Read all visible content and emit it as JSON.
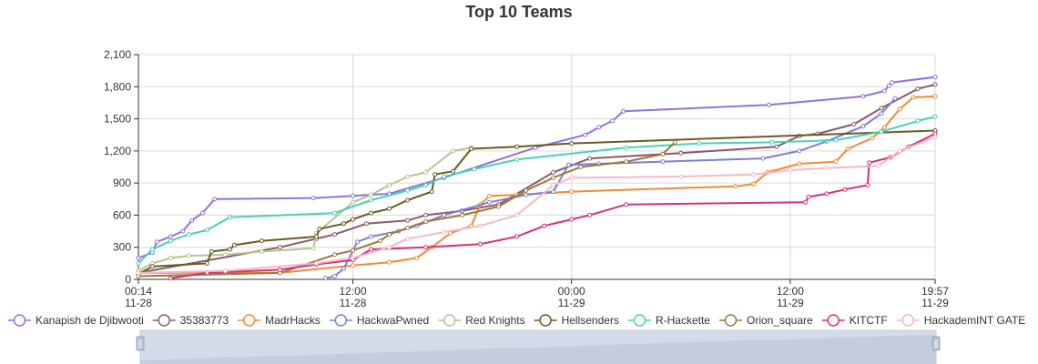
{
  "chart_data": {
    "type": "line",
    "title": "Top 10 Teams",
    "ylim": [
      0,
      2100
    ],
    "yticks": [
      0,
      300,
      600,
      900,
      1200,
      1500,
      1800,
      2100
    ],
    "ytick_labels": [
      "0",
      "300",
      "600",
      "900",
      "1,200",
      "1,500",
      "1,800",
      "2,100"
    ],
    "xlim": [
      "2024-11-28 00:14",
      "2024-11-29 19:57"
    ],
    "xticks": [
      "2024-11-28 00:14",
      "2024-11-28 12:00",
      "2024-11-29 00:00",
      "2024-11-29 12:00",
      "2024-11-29 19:57"
    ],
    "xtick_labels": [
      [
        "00:14",
        "11-28"
      ],
      [
        "12:00",
        "11-28"
      ],
      [
        "00:00",
        "11-29"
      ],
      [
        "12:00",
        "11-29"
      ],
      [
        "19:57",
        "11-29"
      ]
    ],
    "grid": true,
    "legend_position": "bottom",
    "series": [
      {
        "name": "Kanapish de Djibwooti",
        "color": "#9370db",
        "points": [
          [
            "2024-11-28 00:14",
            200
          ],
          [
            "2024-11-28 01:00",
            250
          ],
          [
            "2024-11-28 01:15",
            350
          ],
          [
            "2024-11-28 02:00",
            400
          ],
          [
            "2024-11-28 02:40",
            450
          ],
          [
            "2024-11-28 03:10",
            550
          ],
          [
            "2024-11-28 03:45",
            620
          ],
          [
            "2024-11-28 04:25",
            750
          ],
          [
            "2024-11-28 09:50",
            760
          ],
          [
            "2024-11-28 12:00",
            780
          ],
          [
            "2024-11-28 14:00",
            800
          ],
          [
            "2024-11-28 17:00",
            950
          ],
          [
            "2024-11-28 22:00",
            1230
          ],
          [
            "2024-11-29 00:45",
            1350
          ],
          [
            "2024-11-29 01:30",
            1420
          ],
          [
            "2024-11-29 02:15",
            1480
          ],
          [
            "2024-11-29 02:50",
            1570
          ],
          [
            "2024-11-29 10:50",
            1630
          ],
          [
            "2024-11-29 16:00",
            1710
          ],
          [
            "2024-11-29 17:10",
            1760
          ],
          [
            "2024-11-29 17:25",
            1810
          ],
          [
            "2024-11-29 17:35",
            1840
          ],
          [
            "2024-11-29 19:57",
            1890
          ]
        ]
      },
      {
        "name": "35383773",
        "color": "#8b5a68",
        "points": [
          [
            "2024-11-28 00:14",
            60
          ],
          [
            "2024-11-28 08:00",
            300
          ],
          [
            "2024-11-28 10:00",
            380
          ],
          [
            "2024-11-28 11:00",
            420
          ],
          [
            "2024-11-28 12:45",
            520
          ],
          [
            "2024-11-28 15:00",
            550
          ],
          [
            "2024-11-28 16:00",
            600
          ],
          [
            "2024-11-28 18:00",
            640
          ],
          [
            "2024-11-28 20:00",
            700
          ],
          [
            "2024-11-28 23:00",
            1000
          ],
          [
            "2024-11-29 01:00",
            1130
          ],
          [
            "2024-11-29 06:00",
            1180
          ],
          [
            "2024-11-29 11:15",
            1240
          ],
          [
            "2024-11-29 12:30",
            1340
          ],
          [
            "2024-11-29 13:30",
            1360
          ],
          [
            "2024-11-29 15:30",
            1450
          ],
          [
            "2024-11-29 17:00",
            1600
          ],
          [
            "2024-11-29 19:00",
            1780
          ],
          [
            "2024-11-29 19:57",
            1820
          ]
        ]
      },
      {
        "name": "MadrHacks",
        "color": "#f08a3a",
        "points": [
          [
            "2024-11-28 00:14",
            60
          ],
          [
            "2024-11-28 08:00",
            60
          ],
          [
            "2024-11-28 12:00",
            130
          ],
          [
            "2024-11-28 14:00",
            160
          ],
          [
            "2024-11-28 15:30",
            200
          ],
          [
            "2024-11-28 16:20",
            300
          ],
          [
            "2024-11-28 17:20",
            430
          ],
          [
            "2024-11-28 18:30",
            500
          ],
          [
            "2024-11-28 19:00",
            700
          ],
          [
            "2024-11-28 19:30",
            780
          ],
          [
            "2024-11-28 21:00",
            790
          ],
          [
            "2024-11-29 00:00",
            820
          ],
          [
            "2024-11-29 09:00",
            870
          ],
          [
            "2024-11-29 10:00",
            890
          ],
          [
            "2024-11-29 10:45",
            1000
          ],
          [
            "2024-11-29 12:30",
            1080
          ],
          [
            "2024-11-29 14:30",
            1100
          ],
          [
            "2024-11-29 15:10",
            1220
          ],
          [
            "2024-11-29 16:30",
            1320
          ],
          [
            "2024-11-29 17:10",
            1420
          ],
          [
            "2024-11-29 18:00",
            1590
          ],
          [
            "2024-11-29 18:45",
            1700
          ],
          [
            "2024-11-29 19:57",
            1710
          ]
        ]
      },
      {
        "name": "HackwaPwned",
        "color": "#7b7fd6",
        "points": [
          [
            "2024-11-28 10:30",
            10
          ],
          [
            "2024-11-28 11:00",
            30
          ],
          [
            "2024-11-28 11:30",
            100
          ],
          [
            "2024-11-28 12:15",
            350
          ],
          [
            "2024-11-28 13:00",
            400
          ],
          [
            "2024-11-28 14:30",
            450
          ],
          [
            "2024-11-28 15:30",
            500
          ],
          [
            "2024-11-28 17:00",
            600
          ],
          [
            "2024-11-28 19:30",
            720
          ],
          [
            "2024-11-28 21:30",
            790
          ],
          [
            "2024-11-28 23:00",
            820
          ],
          [
            "2024-11-28 23:50",
            1070
          ],
          [
            "2024-11-29 01:30",
            1080
          ],
          [
            "2024-11-29 05:00",
            1100
          ],
          [
            "2024-11-29 10:30",
            1130
          ],
          [
            "2024-11-29 12:30",
            1200
          ],
          [
            "2024-11-29 14:00",
            1290
          ],
          [
            "2024-11-29 16:00",
            1430
          ],
          [
            "2024-11-29 17:00",
            1550
          ],
          [
            "2024-11-29 17:45",
            1690
          ]
        ]
      },
      {
        "name": "Red Knights",
        "color": "#b5c48d",
        "points": [
          [
            "2024-11-28 00:14",
            80
          ],
          [
            "2024-11-28 01:00",
            150
          ],
          [
            "2024-11-28 02:00",
            200
          ],
          [
            "2024-11-28 03:00",
            220
          ],
          [
            "2024-11-28 05:00",
            230
          ],
          [
            "2024-11-28 07:00",
            260
          ],
          [
            "2024-11-28 09:50",
            290
          ],
          [
            "2024-11-28 10:00",
            430
          ],
          [
            "2024-11-28 12:00",
            720
          ],
          [
            "2024-11-28 13:00",
            790
          ],
          [
            "2024-11-28 14:00",
            880
          ],
          [
            "2024-11-28 15:00",
            960
          ],
          [
            "2024-11-28 16:00",
            1000
          ],
          [
            "2024-11-28 17:30",
            1200
          ],
          [
            "2024-11-28 18:30",
            1230
          ]
        ]
      },
      {
        "name": "Hellsenders",
        "color": "#6b5a22",
        "points": [
          [
            "2024-11-28 00:14",
            50
          ],
          [
            "2024-11-28 01:00",
            120
          ],
          [
            "2024-11-28 04:00",
            150
          ],
          [
            "2024-11-28 04:15",
            260
          ],
          [
            "2024-11-28 05:15",
            280
          ],
          [
            "2024-11-28 05:30",
            320
          ],
          [
            "2024-11-28 07:00",
            360
          ],
          [
            "2024-11-28 10:00",
            400
          ],
          [
            "2024-11-28 10:10",
            470
          ],
          [
            "2024-11-28 11:30",
            520
          ],
          [
            "2024-11-28 12:00",
            560
          ],
          [
            "2024-11-28 13:00",
            620
          ],
          [
            "2024-11-28 14:00",
            660
          ],
          [
            "2024-11-28 15:00",
            740
          ],
          [
            "2024-11-28 16:20",
            820
          ],
          [
            "2024-11-28 16:30",
            980
          ],
          [
            "2024-11-28 17:30",
            1010
          ],
          [
            "2024-11-28 18:30",
            1220
          ],
          [
            "2024-11-28 21:00",
            1240
          ],
          [
            "2024-11-29 00:00",
            1270
          ],
          [
            "2024-11-29 19:57",
            1390
          ]
        ]
      },
      {
        "name": "R-Hackette",
        "color": "#48d1b8",
        "points": [
          [
            "2024-11-28 00:14",
            150
          ],
          [
            "2024-11-28 01:00",
            280
          ],
          [
            "2024-11-28 02:00",
            360
          ],
          [
            "2024-11-28 03:00",
            420
          ],
          [
            "2024-11-28 04:00",
            460
          ],
          [
            "2024-11-28 05:15",
            580
          ],
          [
            "2024-11-28 11:00",
            620
          ],
          [
            "2024-11-28 13:00",
            740
          ],
          [
            "2024-11-28 15:00",
            830
          ],
          [
            "2024-11-28 16:00",
            880
          ],
          [
            "2024-11-28 17:00",
            960
          ],
          [
            "2024-11-28 18:40",
            1030
          ],
          [
            "2024-11-28 21:00",
            1120
          ],
          [
            "2024-11-29 03:00",
            1230
          ],
          [
            "2024-11-29 07:00",
            1270
          ],
          [
            "2024-11-29 11:00",
            1280
          ],
          [
            "2024-11-29 14:30",
            1300
          ],
          [
            "2024-11-29 17:00",
            1380
          ],
          [
            "2024-11-29 19:00",
            1480
          ],
          [
            "2024-11-29 19:57",
            1520
          ]
        ]
      },
      {
        "name": "Orion_square",
        "color": "#9b7a3a",
        "points": [
          [
            "2024-11-28 00:14",
            30
          ],
          [
            "2024-11-28 08:00",
            60
          ],
          [
            "2024-11-28 11:00",
            230
          ],
          [
            "2024-11-28 12:00",
            270
          ],
          [
            "2024-11-28 13:30",
            360
          ],
          [
            "2024-11-28 14:00",
            420
          ],
          [
            "2024-11-28 15:00",
            480
          ],
          [
            "2024-11-28 16:00",
            540
          ],
          [
            "2024-11-28 18:00",
            600
          ],
          [
            "2024-11-28 20:00",
            680
          ],
          [
            "2024-11-28 21:30",
            830
          ],
          [
            "2024-11-28 23:00",
            950
          ],
          [
            "2024-11-29 00:30",
            1050
          ],
          [
            "2024-11-29 03:00",
            1100
          ],
          [
            "2024-11-29 05:00",
            1170
          ],
          [
            "2024-11-29 05:40",
            1280
          ]
        ]
      },
      {
        "name": "KITCTF",
        "color": "#d6307a",
        "points": [
          [
            "2024-11-28 02:00",
            10
          ],
          [
            "2024-11-28 04:00",
            60
          ],
          [
            "2024-11-28 08:00",
            90
          ],
          [
            "2024-11-28 10:00",
            140
          ],
          [
            "2024-11-28 12:00",
            180
          ],
          [
            "2024-11-28 13:00",
            280
          ],
          [
            "2024-11-28 16:00",
            300
          ],
          [
            "2024-11-28 19:00",
            330
          ],
          [
            "2024-11-28 21:00",
            400
          ],
          [
            "2024-11-28 22:30",
            500
          ],
          [
            "2024-11-29 00:00",
            560
          ],
          [
            "2024-11-29 01:00",
            600
          ],
          [
            "2024-11-29 03:00",
            700
          ],
          [
            "2024-11-29 12:50",
            720
          ],
          [
            "2024-11-29 13:00",
            770
          ],
          [
            "2024-11-29 14:00",
            800
          ],
          [
            "2024-11-29 15:00",
            840
          ],
          [
            "2024-11-29 16:15",
            880
          ],
          [
            "2024-11-29 16:20",
            1090
          ],
          [
            "2024-11-29 17:30",
            1140
          ],
          [
            "2024-11-29 18:30",
            1240
          ],
          [
            "2024-11-29 19:57",
            1360
          ]
        ]
      },
      {
        "name": "HackademINT GATE",
        "color": "#f2b8c6",
        "points": [
          [
            "2024-11-28 00:14",
            60
          ],
          [
            "2024-11-28 05:00",
            80
          ],
          [
            "2024-11-28 10:00",
            150
          ],
          [
            "2024-11-28 12:00",
            200
          ],
          [
            "2024-11-28 14:00",
            300
          ],
          [
            "2024-11-28 15:00",
            380
          ],
          [
            "2024-11-28 17:00",
            440
          ],
          [
            "2024-11-28 19:00",
            500
          ],
          [
            "2024-11-28 21:00",
            600
          ],
          [
            "2024-11-28 23:00",
            880
          ],
          [
            "2024-11-29 00:00",
            950
          ],
          [
            "2024-11-29 06:00",
            960
          ],
          [
            "2024-11-29 10:00",
            980
          ],
          [
            "2024-11-29 12:00",
            1020
          ],
          [
            "2024-11-29 14:00",
            1040
          ],
          [
            "2024-11-29 16:50",
            1060
          ],
          [
            "2024-11-29 18:00",
            1200
          ],
          [
            "2024-11-29 19:57",
            1330
          ]
        ]
      }
    ]
  }
}
